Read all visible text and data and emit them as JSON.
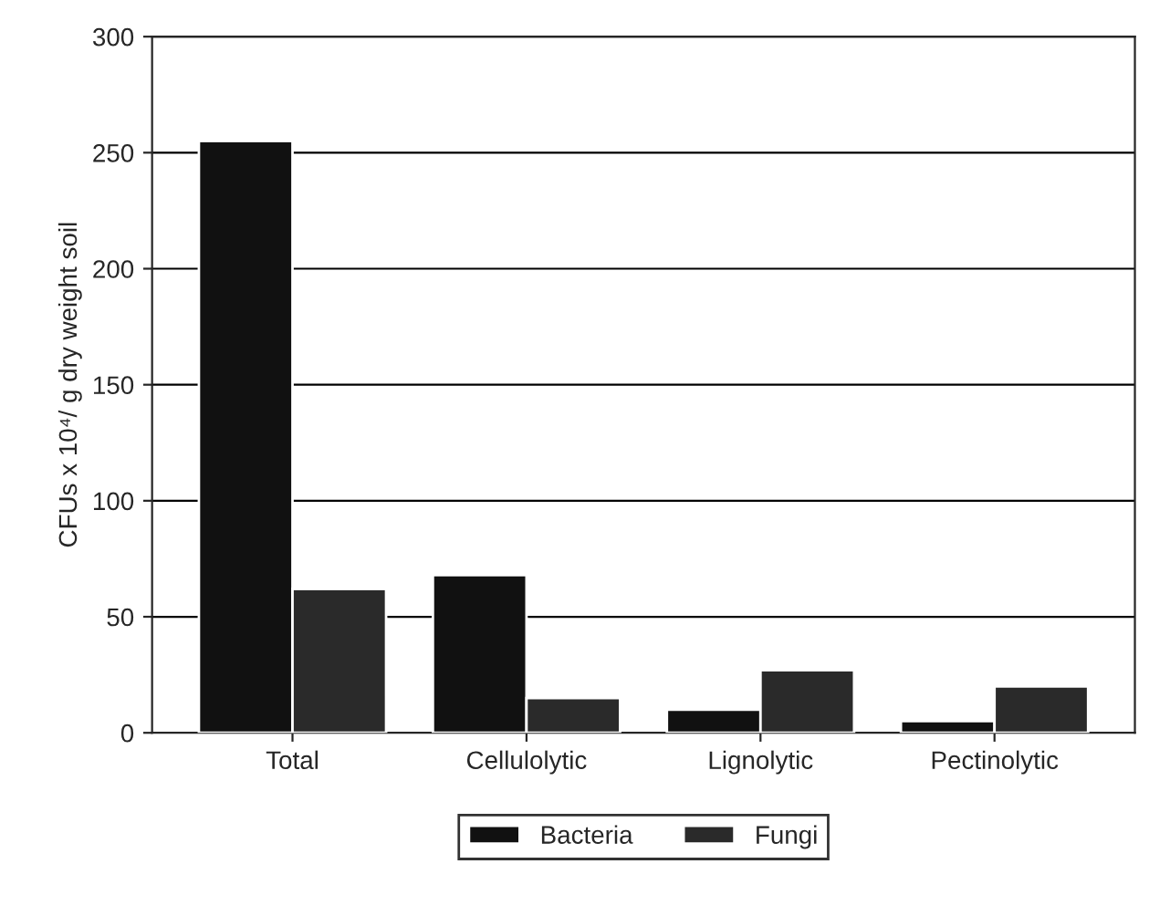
{
  "chart_data": {
    "type": "bar",
    "ylabel": "CFUs x 10⁴/ g dry weight soil",
    "categories": [
      "Total",
      "Cellulolytic",
      "Lignolytic",
      "Pectinolytic"
    ],
    "series": [
      {
        "name": "Bacteria",
        "color": "#111111",
        "values": [
          255,
          68,
          10,
          5
        ]
      },
      {
        "name": "Fungi",
        "color": "#2a2a2a",
        "values": [
          62,
          15,
          27,
          20
        ]
      }
    ],
    "ylim": [
      0,
      300
    ],
    "yticks": [
      0,
      50,
      100,
      150,
      200,
      250,
      300
    ],
    "grid": "y",
    "legend": "bottom"
  }
}
